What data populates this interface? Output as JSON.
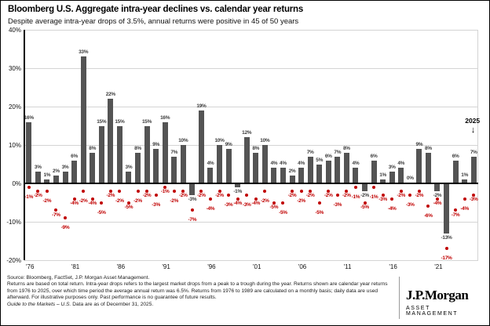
{
  "header": {
    "title": "Bloomberg U.S. Aggregate intra-year declines vs. calendar year returns",
    "subtitle": "Despite average intra-year drops of 3.5%, annual returns were positive in 45 of 50 years"
  },
  "chart_data": {
    "type": "bar",
    "title": "Bloomberg U.S. Aggregate intra-year declines vs. calendar year returns",
    "subtitle": "Despite average intra-year drops of 3.5%, annual returns were positive in 45 of 50 years",
    "x_start_year": 1976,
    "x_end_year": 2025,
    "ylim": [
      -20,
      40
    ],
    "y_ticks": [
      "40%",
      "30%",
      "20%",
      "10%",
      "0%",
      "-10%",
      "-20%"
    ],
    "y_tick_values": [
      40,
      30,
      20,
      10,
      0,
      -10,
      -20
    ],
    "x_tick_labels": [
      "'76",
      "'81",
      "'86",
      "'91",
      "'96",
      "'01",
      "'06",
      "'11",
      "'16",
      "'21"
    ],
    "x_tick_indices": [
      0,
      5,
      10,
      15,
      20,
      25,
      30,
      35,
      40,
      45
    ],
    "grid": "horizontal",
    "legend": "none",
    "series": [
      {
        "name": "Calendar year return",
        "style": "bar",
        "values": [
          16,
          3,
          1,
          2,
          3,
          6,
          33,
          8,
          15,
          22,
          15,
          3,
          8,
          15,
          9,
          16,
          7,
          10,
          -3,
          19,
          4,
          10,
          9,
          -1,
          12,
          8,
          10,
          4,
          4,
          2,
          4,
          7,
          5,
          6,
          7,
          8,
          4,
          -2,
          6,
          1,
          3,
          4,
          0,
          9,
          8,
          -2,
          -13,
          6,
          1,
          7
        ]
      },
      {
        "name": "Intra-year decline",
        "style": "dot",
        "values": [
          -1,
          -2,
          -2,
          -7,
          -9,
          -4,
          -2,
          -4,
          -5,
          -2,
          -2,
          -5,
          -2,
          -2,
          -3,
          -1,
          -2,
          -2,
          -7,
          -2,
          -4,
          -2,
          -3,
          -4,
          -3,
          -4,
          -2,
          -5,
          -5,
          -2,
          -2,
          -2,
          -5,
          -2,
          -3,
          -2,
          -1,
          -5,
          -1,
          -3,
          -4,
          -2,
          -3,
          -2,
          -6,
          -4,
          -17,
          -7,
          -4,
          -3
        ]
      }
    ],
    "annotation": {
      "label": "2025",
      "arrow": "↓",
      "target_year": 2025
    },
    "colors": {
      "bar": "#545454",
      "bar_label": "#3d3d3d",
      "dot": "#c00000",
      "dot_label": "#c00000",
      "grid": "#d4d4d4",
      "axis": "#000000"
    }
  },
  "footer": {
    "source_line": "Source: Bloomberg, FactSet, J.P. Morgan Asset Management.",
    "disclosure": "Returns are based on total return. Intra-year drops refers to the largest market drops from a peak to a trough during the year. Returns shown are calendar year returns from 1976 to 2025, over which time period the average annual return was 6.5%. Returns from 1976 to 1989 are calculated on a monthly basis; daily data are used afterward. For illustrative purposes only. Past performance is no guarantee of future results.",
    "guide_italic": "Guide to the Markets – U.S.",
    "guide_rest": " Data are as of December 31, 2025."
  },
  "logo": {
    "brand": "J.P.Morgan",
    "division": "ASSET MANAGEMENT"
  }
}
